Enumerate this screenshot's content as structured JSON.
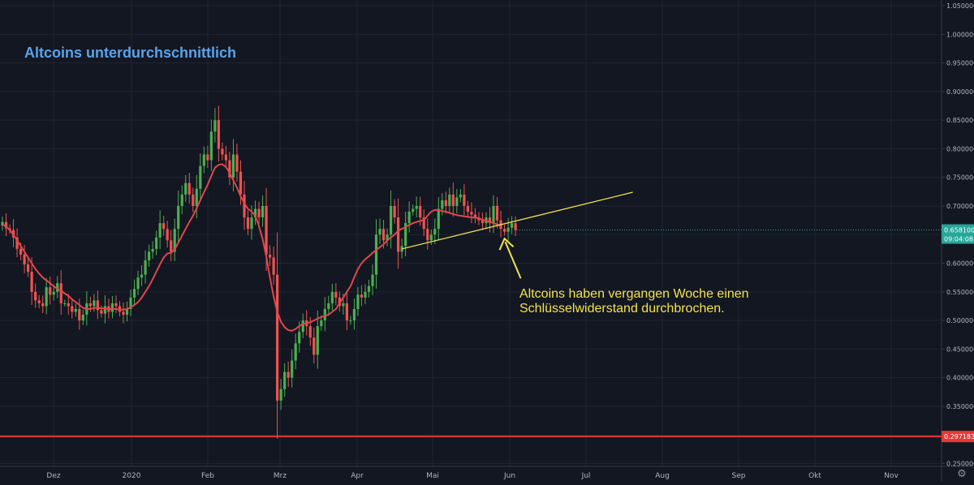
{
  "title": "Altcoins unterdurchschnittlich",
  "annotation": {
    "line1": "Altcoins haben vergangen Woche einen",
    "line2": "Schlüsselwiderstand durchbrochen."
  },
  "colors": {
    "background": "#131722",
    "grid": "#1f2433",
    "up": "#26a69a",
    "up_fill": "#4caf50",
    "down": "#ef5350",
    "ma": "#e0474c",
    "trendline": "#f2e34c",
    "support": "#e53935",
    "axis_text": "#b2b5be",
    "price_label_bg": "#26a69a",
    "support_label_bg": "#e53935"
  },
  "chart_data": {
    "type": "candlestick",
    "x_ticks": [
      "Dez",
      "2020",
      "Feb",
      "Mrz",
      "Apr",
      "Mai",
      "Jun",
      "Jul",
      "Aug",
      "Sep",
      "Okt",
      "Nov"
    ],
    "y_ticks": [
      "1.05000000",
      "1.00000000",
      "0.95000000",
      "0.90000000",
      "0.85000000",
      "0.80000000",
      "0.75000000",
      "0.70000000",
      "0.65000000",
      "0.60000000",
      "0.55000000",
      "0.50000000",
      "0.45000000",
      "0.40000000",
      "0.35000000",
      "0.30000000",
      "0.25000000"
    ],
    "y_tick_values": [
      1.05,
      1.0,
      0.95,
      0.9,
      0.85,
      0.8,
      0.75,
      0.7,
      0.65,
      0.6,
      0.55,
      0.5,
      0.45,
      0.4,
      0.35,
      0.3,
      0.25
    ],
    "ylim": [
      0.245,
      1.06
    ],
    "current_price_label": "0.65810000",
    "current_time_label": "09:04:08",
    "current_price": 0.6581,
    "support_label": "0.29718363",
    "support_level": 0.29718363,
    "closes": [
      0.672,
      0.661,
      0.658,
      0.645,
      0.625,
      0.615,
      0.598,
      0.585,
      0.55,
      0.535,
      0.53,
      0.525,
      0.558,
      0.545,
      0.55,
      0.565,
      0.53,
      0.53,
      0.525,
      0.515,
      0.52,
      0.5,
      0.51,
      0.53,
      0.525,
      0.535,
      0.518,
      0.512,
      0.525,
      0.515,
      0.53,
      0.525,
      0.515,
      0.51,
      0.52,
      0.54,
      0.555,
      0.575,
      0.58,
      0.605,
      0.62,
      0.625,
      0.645,
      0.67,
      0.66,
      0.64,
      0.62,
      0.66,
      0.7,
      0.72,
      0.74,
      0.72,
      0.7,
      0.73,
      0.77,
      0.79,
      0.78,
      0.83,
      0.85,
      0.8,
      0.79,
      0.78,
      0.75,
      0.79,
      0.76,
      0.72,
      0.68,
      0.66,
      0.68,
      0.695,
      0.68,
      0.7,
      0.615,
      0.61,
      0.58,
      0.36,
      0.38,
      0.41,
      0.4,
      0.43,
      0.46,
      0.48,
      0.5,
      0.49,
      0.47,
      0.44,
      0.49,
      0.5,
      0.52,
      0.53,
      0.55,
      0.54,
      0.525,
      0.53,
      0.5,
      0.5,
      0.52,
      0.545,
      0.54,
      0.55,
      0.56,
      0.58,
      0.65,
      0.66,
      0.64,
      0.65,
      0.7,
      0.68,
      0.62,
      0.63,
      0.67,
      0.69,
      0.695,
      0.7,
      0.68,
      0.66,
      0.64,
      0.65,
      0.66,
      0.695,
      0.71,
      0.7,
      0.72,
      0.7,
      0.715,
      0.72,
      0.7,
      0.69,
      0.685,
      0.68,
      0.675,
      0.67,
      0.68,
      0.67,
      0.7,
      0.675,
      0.66,
      0.655,
      0.662,
      0.67,
      0.658
    ],
    "moving_average": [
      0.668,
      0.664,
      0.658,
      0.65,
      0.64,
      0.63,
      0.62,
      0.61,
      0.6,
      0.59,
      0.582,
      0.575,
      0.57,
      0.565,
      0.56,
      0.555,
      0.552,
      0.547,
      0.543,
      0.537,
      0.532,
      0.527,
      0.522,
      0.52,
      0.52,
      0.522,
      0.522,
      0.521,
      0.521,
      0.52,
      0.52,
      0.52,
      0.519,
      0.519,
      0.52,
      0.523,
      0.527,
      0.532,
      0.54,
      0.55,
      0.56,
      0.572,
      0.585,
      0.598,
      0.61,
      0.617,
      0.618,
      0.624,
      0.636,
      0.648,
      0.66,
      0.672,
      0.683,
      0.696,
      0.71,
      0.724,
      0.737,
      0.753,
      0.767,
      0.772,
      0.773,
      0.768,
      0.758,
      0.745,
      0.732,
      0.717,
      0.705,
      0.695,
      0.69,
      0.683,
      0.665,
      0.642,
      0.612,
      0.575,
      0.542,
      0.515,
      0.498,
      0.488,
      0.483,
      0.482,
      0.485,
      0.49,
      0.494,
      0.495,
      0.497,
      0.5,
      0.503,
      0.506,
      0.508,
      0.51,
      0.515,
      0.52,
      0.53,
      0.54,
      0.55,
      0.56,
      0.575,
      0.59,
      0.6,
      0.607,
      0.612,
      0.618,
      0.623,
      0.628,
      0.633,
      0.64,
      0.645,
      0.65,
      0.657,
      0.66,
      0.663,
      0.667,
      0.67,
      0.672,
      0.674,
      0.675,
      0.683,
      0.69,
      0.693,
      0.693,
      0.691,
      0.69,
      0.688,
      0.686,
      0.684,
      0.683,
      0.682,
      0.681,
      0.68,
      0.68,
      0.678,
      0.676,
      0.674,
      0.672,
      0.67,
      0.668,
      0.665
    ],
    "trendline": {
      "start_index": 109,
      "start_value": 0.625,
      "end_index": 172,
      "end_value": 0.724
    },
    "arrow_target_index": 137,
    "arrow_target_value": 0.643
  }
}
